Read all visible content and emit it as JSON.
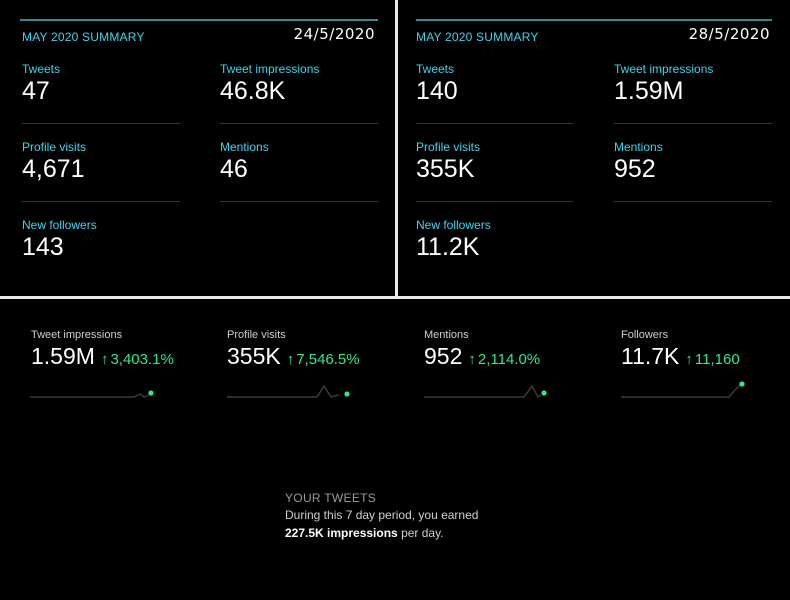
{
  "summary_left": {
    "title": "MAY 2020 SUMMARY",
    "date": "24/5/2020",
    "tweets": {
      "label": "Tweets",
      "value": "47"
    },
    "impressions": {
      "label": "Tweet impressions",
      "value": "46.8K"
    },
    "profile_visits": {
      "label": "Profile visits",
      "value": "4,671"
    },
    "mentions": {
      "label": "Mentions",
      "value": "46"
    },
    "new_followers": {
      "label": "New followers",
      "value": "143"
    }
  },
  "summary_right": {
    "title": "MAY 2020 SUMMARY",
    "date": "28/5/2020",
    "tweets": {
      "label": "Tweets",
      "value": "140"
    },
    "impressions": {
      "label": "Tweet impressions",
      "value": "1.59M"
    },
    "profile_visits": {
      "label": "Profile visits",
      "value": "355K"
    },
    "mentions": {
      "label": "Mentions",
      "value": "952"
    },
    "new_followers": {
      "label": "New followers",
      "value": "11.2K"
    }
  },
  "stats": [
    {
      "label": "Tweet impressions",
      "value": "1.59M",
      "change": "3,403.1%"
    },
    {
      "label": "Profile visits",
      "value": "355K",
      "change": "7,546.5%"
    },
    {
      "label": "Mentions",
      "value": "952",
      "change": "2,114.0%"
    },
    {
      "label": "Followers",
      "value": "11.7K",
      "change": "11,160"
    }
  ],
  "your_tweets": {
    "heading": "YOUR TWEETS",
    "line1": "During this 7 day period, you earned",
    "line2_strong": "227.5K impressions",
    "line2_rest": " per day."
  },
  "colors": {
    "accent": "#3fd3ee",
    "positive": "#2ee88a",
    "divider": "#e8e8e8",
    "topline": "#2f8c98"
  },
  "icons": {
    "arrow": "↑"
  }
}
